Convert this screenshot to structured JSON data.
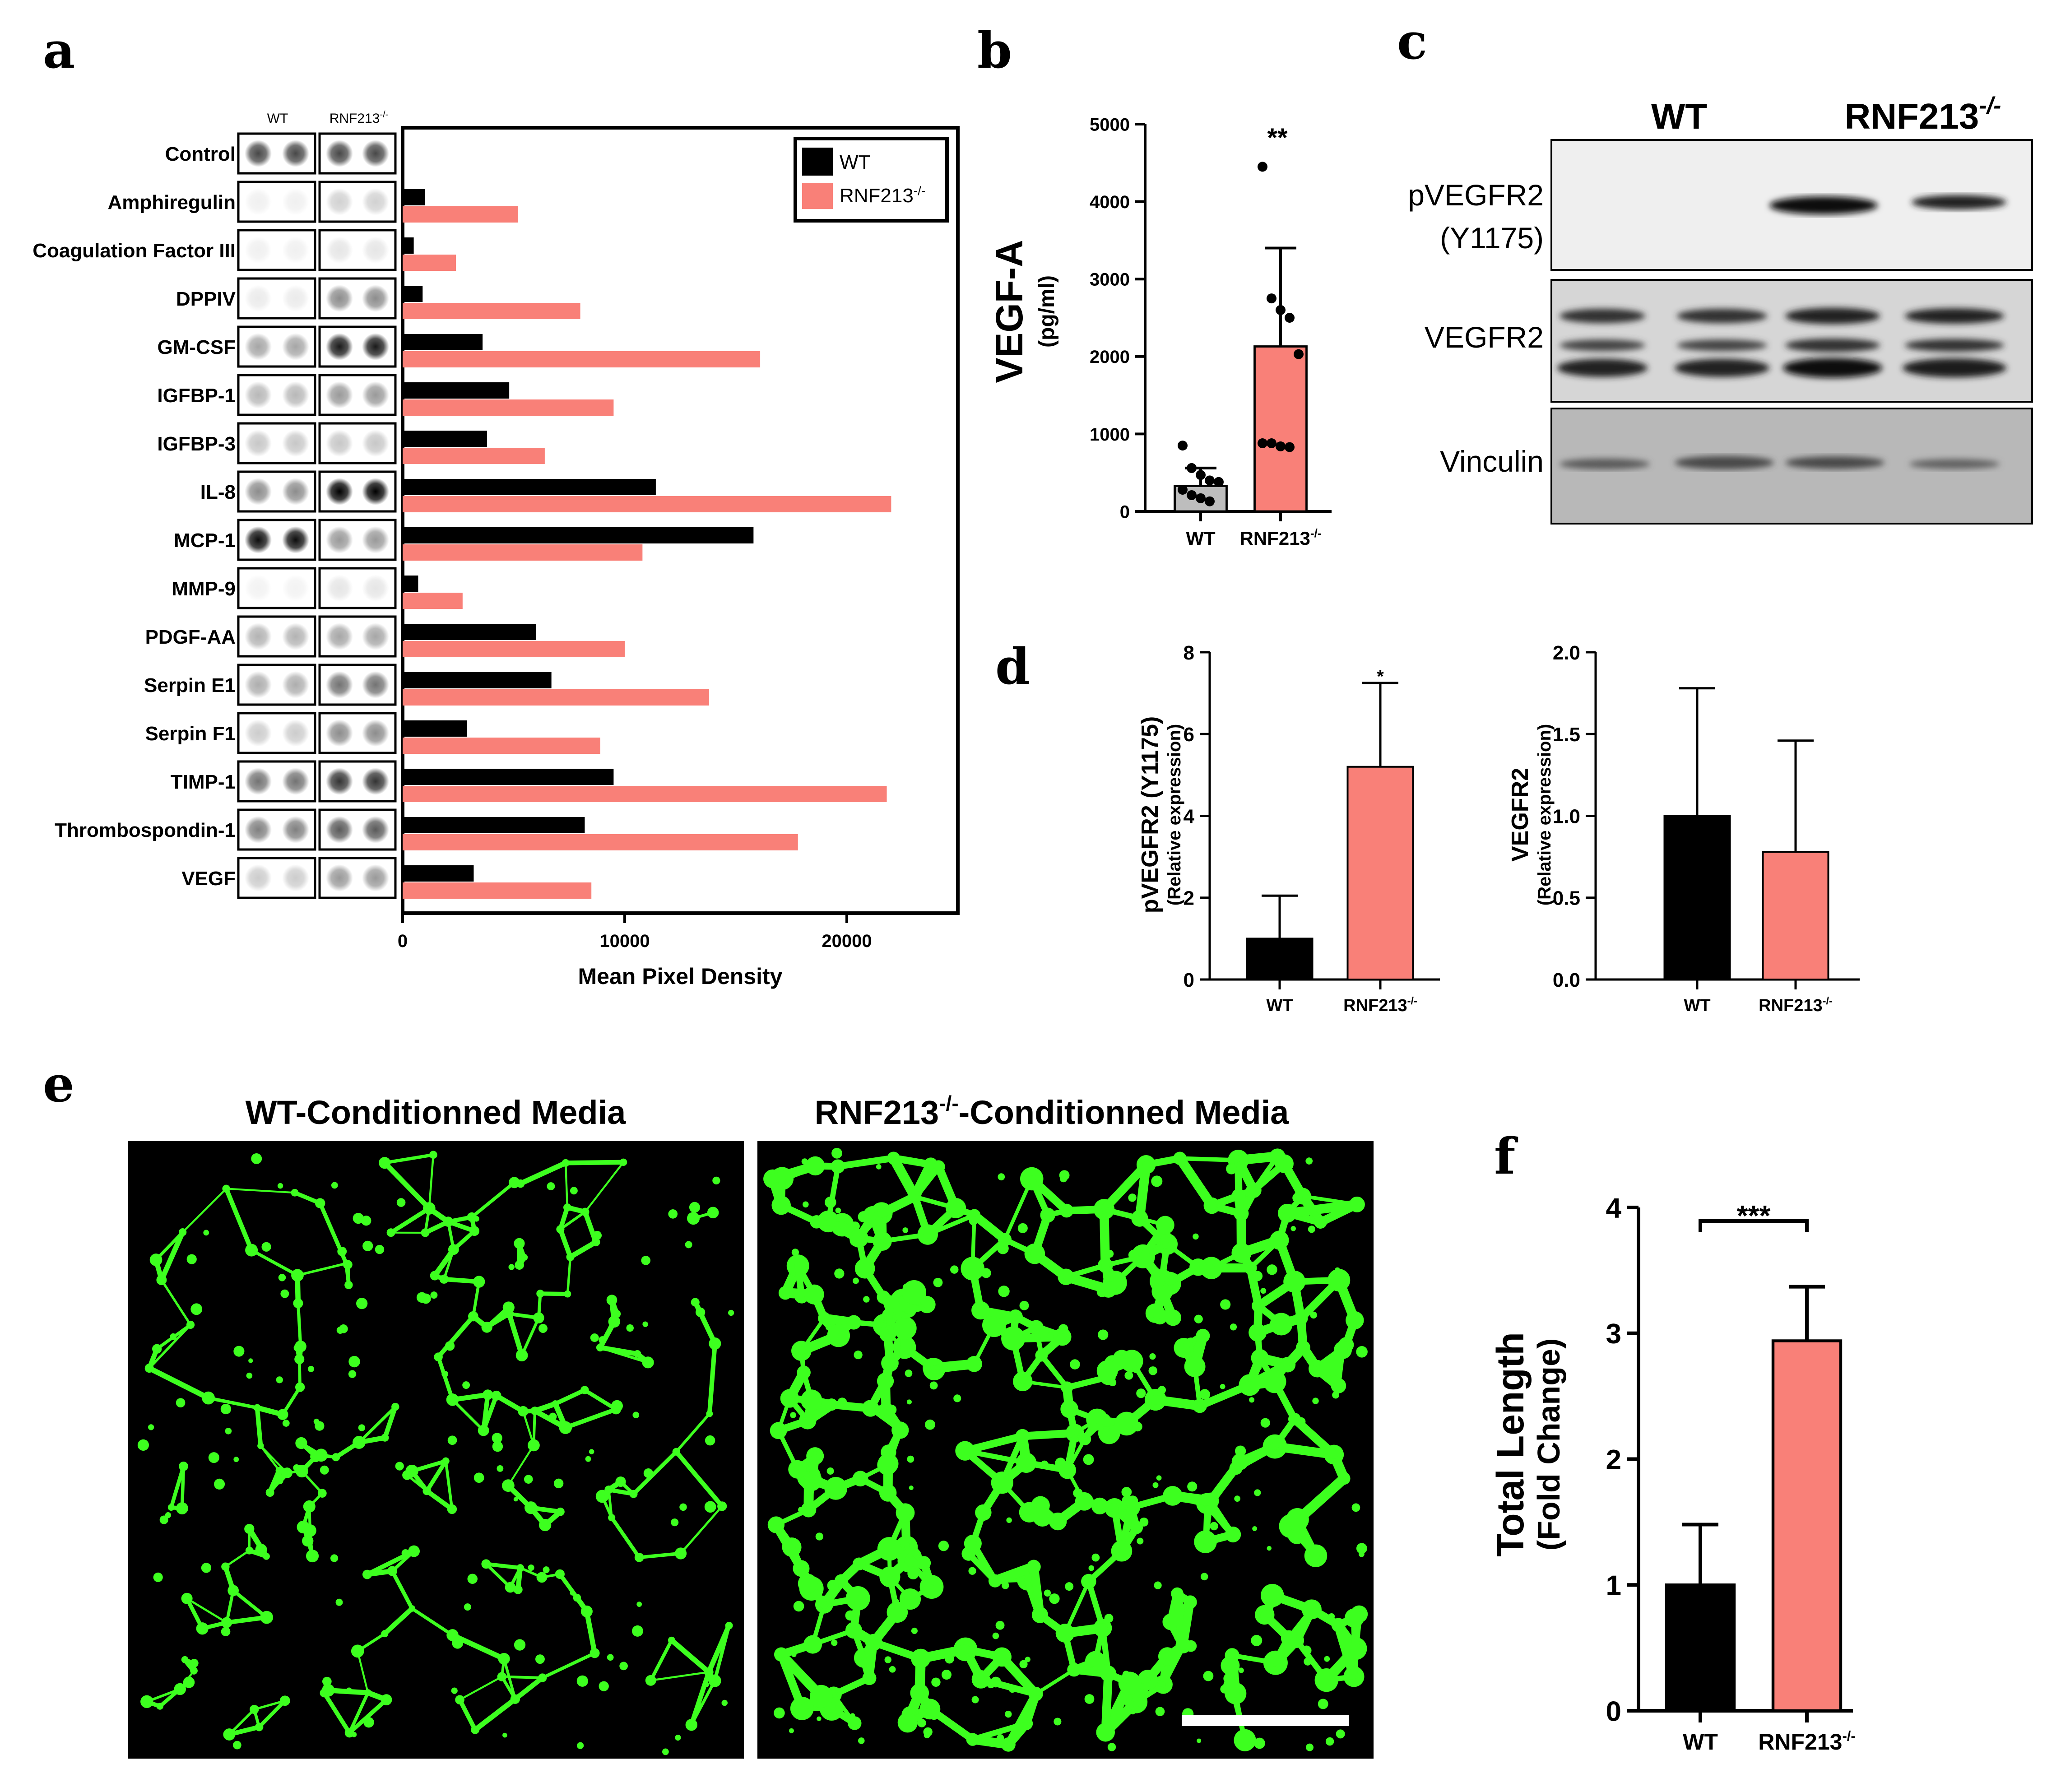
{
  "panels": {
    "a": "a",
    "b": "b",
    "c": "c",
    "d": "d",
    "e": "e",
    "f": "f"
  },
  "colors": {
    "wt": "#000000",
    "ko": "#f98078",
    "green": "#3dff1f"
  },
  "panel_a": {
    "blot_headers": {
      "wt": "WT",
      "ko": "RNF213",
      "ko_sup": "-/-"
    },
    "legend": {
      "wt": "WT",
      "ko": "RNF213",
      "ko_sup": "-/-"
    }
  },
  "panel_b": {
    "significance": "**"
  },
  "panel_c": {
    "col_wt": "WT",
    "col_ko": "RNF213",
    "col_ko_sup": "-/-",
    "rows": [
      "pVEGFR2",
      "(Y1175)",
      "VEGFR2",
      "Vinculin"
    ]
  },
  "panel_d": {
    "significance_left": "*"
  },
  "panel_e": {
    "title_wt": "WT-Conditionned Media",
    "title_ko_pre": "RNF213",
    "title_ko_sup": "-/-",
    "title_ko_post": "-Conditionned Media"
  },
  "panel_f": {
    "significance": "***"
  },
  "chart_data": [
    {
      "id": "a",
      "type": "bar",
      "orientation": "horizontal",
      "categories": [
        "Control",
        "Amphiregulin",
        "Coagulation Factor III",
        "DPPIV",
        "GM-CSF",
        "IGFBP-1",
        "IGFBP-3",
        "IL-8",
        "MCP-1",
        "MMP-9",
        "PDGF-AA",
        "Serpin E1",
        "Serpin F1",
        "TIMP-1",
        "Thrombospondin-1",
        "VEGF"
      ],
      "series": [
        {
          "name": "WT",
          "color": "#000000",
          "values": [
            0,
            1000,
            500,
            900,
            3600,
            4800,
            3800,
            11400,
            15800,
            700,
            6000,
            6700,
            2900,
            9500,
            8200,
            3200
          ]
        },
        {
          "name": "RNF213-/-",
          "color": "#f98078",
          "values": [
            0,
            5200,
            2400,
            8000,
            16100,
            9500,
            6400,
            22000,
            10800,
            2700,
            10000,
            13800,
            8900,
            21800,
            17800,
            8500
          ]
        }
      ],
      "xlabel": "Mean Pixel Density",
      "xticks": [
        0,
        10000,
        20000
      ],
      "xlim": [
        0,
        25000
      ],
      "legend": "top-right",
      "dot_blot": {
        "WT": [
          0.72,
          0.06,
          0.06,
          0.08,
          0.35,
          0.28,
          0.22,
          0.45,
          0.95,
          0.05,
          0.3,
          0.32,
          0.2,
          0.55,
          0.5,
          0.2
        ],
        "RNF213-/-": [
          0.72,
          0.18,
          0.1,
          0.45,
          0.9,
          0.4,
          0.22,
          1.0,
          0.4,
          0.1,
          0.35,
          0.55,
          0.45,
          0.8,
          0.65,
          0.4
        ]
      }
    },
    {
      "id": "b",
      "type": "bar",
      "categories": [
        "WT",
        "RNF213-/-"
      ],
      "values": [
        330,
        2130
      ],
      "errors": [
        230,
        1270
      ],
      "points": [
        [
          850,
          560,
          470,
          400,
          380,
          280,
          210,
          170,
          130
        ],
        [
          4450,
          2750,
          2600,
          2500,
          2030,
          880,
          880,
          840,
          830
        ]
      ],
      "ylabel": "VEGF-A",
      "ylabel_sub": "(pg/ml)",
      "yticks": [
        0,
        1000,
        2000,
        3000,
        4000,
        5000
      ],
      "ylim": [
        0,
        5000
      ]
    },
    {
      "id": "d-left",
      "type": "bar",
      "categories": [
        "WT",
        "RNF213-/-"
      ],
      "values": [
        1.0,
        5.2
      ],
      "errors": [
        1.05,
        2.05
      ],
      "ylabel": "pVEGFR2 (Y1175)",
      "ylabel_sub": "(Relative expression)",
      "yticks": [
        0,
        2,
        4,
        6,
        8
      ],
      "ylim": [
        0,
        8
      ]
    },
    {
      "id": "d-right",
      "type": "bar",
      "categories": [
        "WT",
        "RNF213-/-"
      ],
      "values": [
        1.0,
        0.78
      ],
      "errors": [
        0.78,
        0.68
      ],
      "ylabel": "VEGFR2",
      "ylabel_sub": "(Relative expression)",
      "yticks": [
        "0.0",
        "0.5",
        "1.0",
        "1.5",
        "2.0"
      ],
      "ylim": [
        0,
        2.0
      ]
    },
    {
      "id": "f",
      "type": "bar",
      "categories": [
        "WT",
        "RNF213-/-"
      ],
      "values": [
        1.0,
        2.94
      ],
      "errors": [
        0.48,
        0.43
      ],
      "ylabel": "Total Length",
      "ylabel_sub": "(Fold Change)",
      "yticks": [
        0,
        1,
        2,
        3,
        4
      ],
      "ylim": [
        0,
        4
      ]
    }
  ]
}
